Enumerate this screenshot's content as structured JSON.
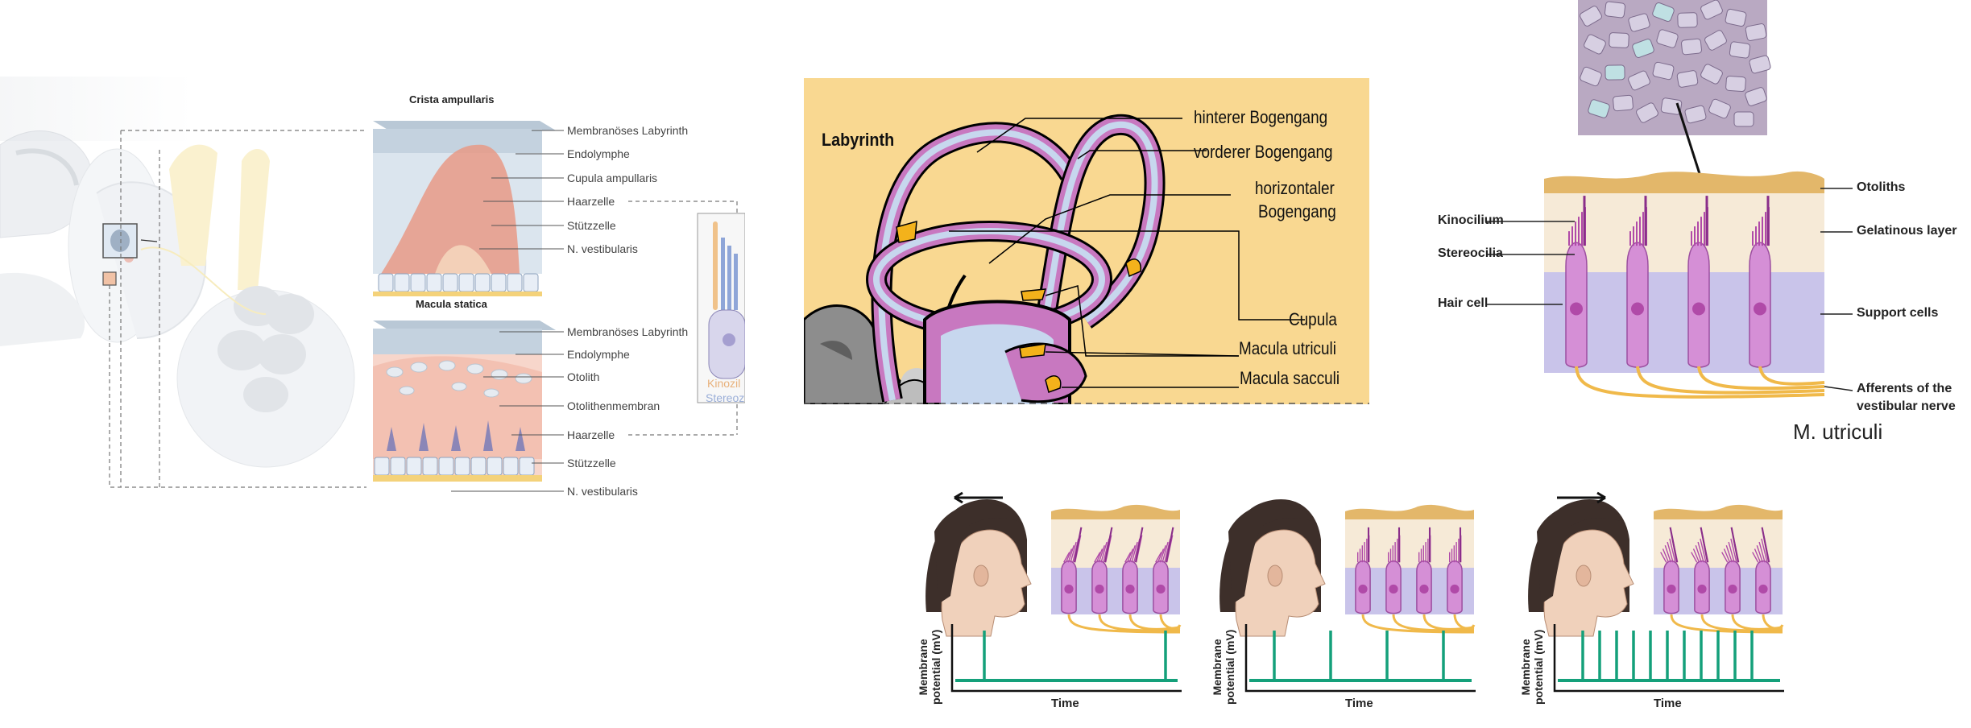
{
  "left": {
    "crista_title": "Crista ampullaris",
    "crista_labels": [
      "Membranöses Labyrinth",
      "Endolymphe",
      "Cupula ampullaris",
      "Haarzelle",
      "Stützzelle",
      "N. vestibularis"
    ],
    "macula_title": "Macula statica",
    "macula_labels": [
      "Membranöses Labyrinth",
      "Endolymphe",
      "Otolith",
      "Otolithenmembran",
      "Haarzelle",
      "Stützzelle",
      "N. vestibularis"
    ],
    "inset_labels": [
      "Kinozil",
      "Stereoz"
    ],
    "colors": {
      "cupula": "#e89a86",
      "endolymph": "#cdd9e3",
      "otolith_membrane": "#f6c9bd",
      "hair_cell": "#8b86b7",
      "nerve": "#f4d27a"
    }
  },
  "middle": {
    "title": "Labyrinth",
    "labels": [
      "hinterer Bogengang",
      "vorderer Bogengang",
      "horizontaler",
      "Bogengang",
      "Cupula",
      "Macula utriculi",
      "Macula sacculi"
    ],
    "colors": {
      "background": "#f9d891",
      "canal_fill": "#c878c0",
      "canal_inner": "#c7d7ee",
      "sensor": "#f3b21b"
    }
  },
  "right": {
    "labels_left": [
      "Kinocilium",
      "Stereocilia",
      "Hair cell"
    ],
    "labels_right": [
      "Otoliths",
      "Gelatinous layer",
      "Support cells",
      "Afferents of the",
      "vestibular nerve"
    ],
    "caption": "M. utriculi",
    "colors": {
      "hair_cell": "#d58fd6",
      "support": "#c9c4ea",
      "gel": "#f6ead7",
      "nerve": "#f0b94a"
    }
  },
  "bottom": {
    "ylabel_line1": "Membrane",
    "ylabel_line2": "potential (mV)",
    "xlabel": "Time",
    "trace_color": "#14a07a",
    "panels": [
      {
        "head_motion": "left",
        "spike_count": 2,
        "hair_tilt": "right"
      },
      {
        "head_motion": "none",
        "spike_count": 4,
        "hair_tilt": "none"
      },
      {
        "head_motion": "right",
        "spike_count": 11,
        "hair_tilt": "left"
      }
    ]
  }
}
